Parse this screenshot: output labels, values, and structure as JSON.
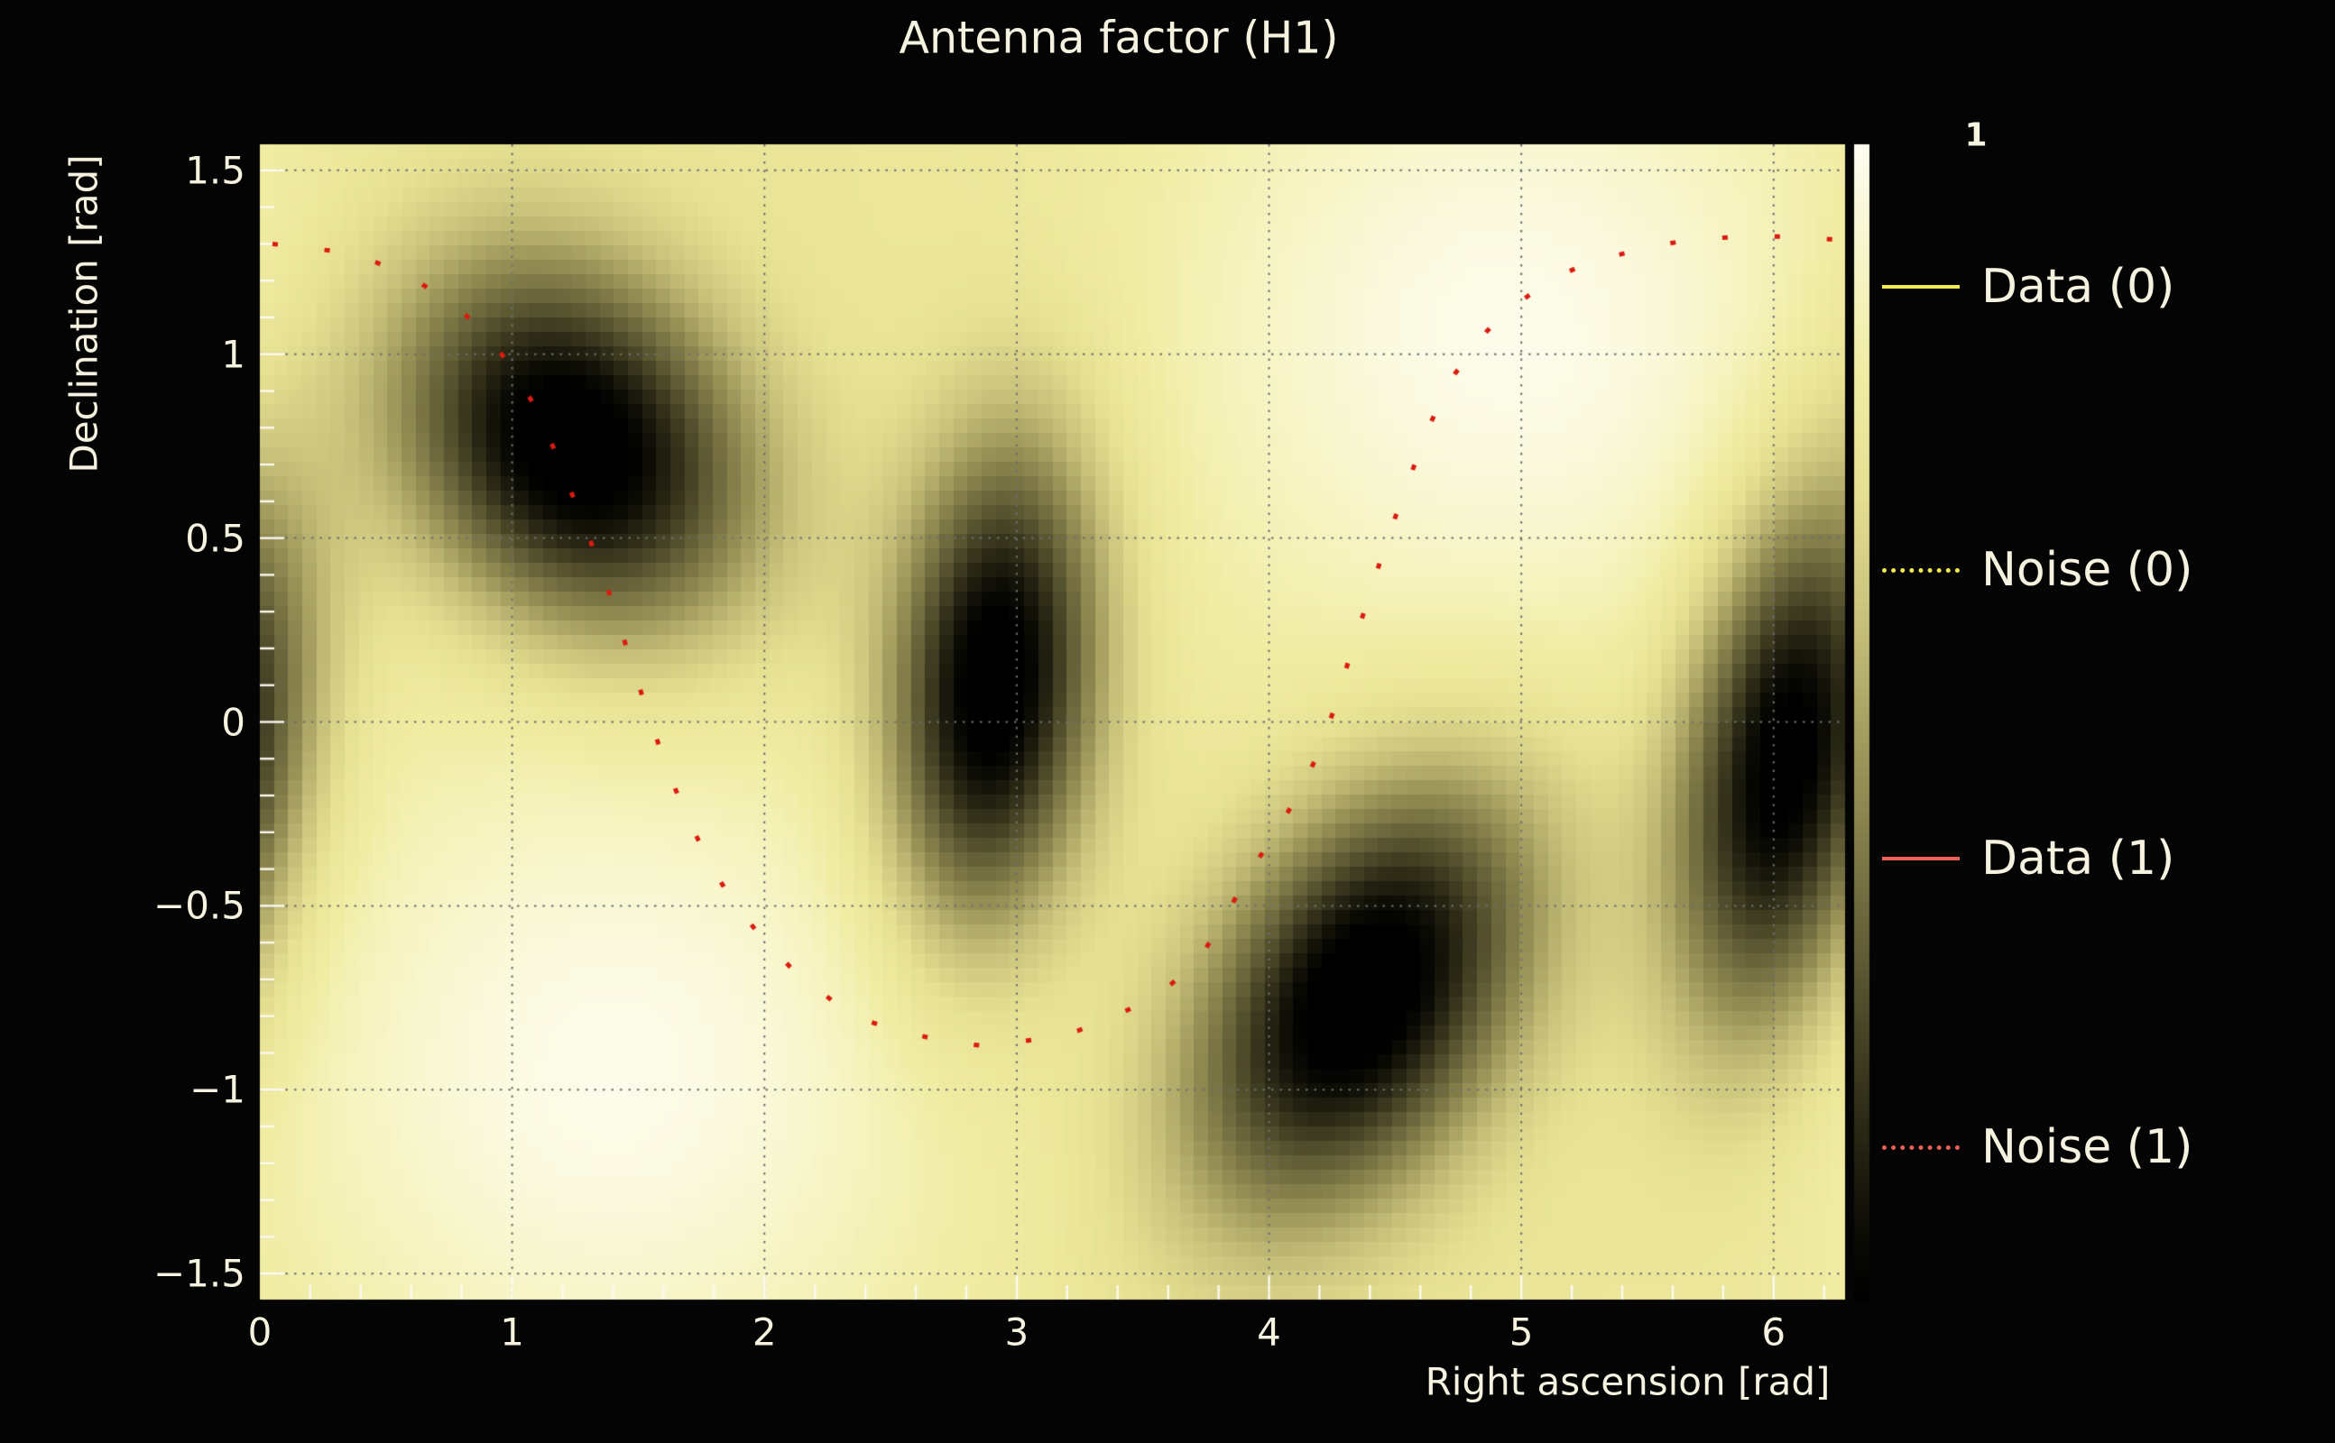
{
  "figure": {
    "background": "#040404",
    "text_color": "#f5f2e0"
  },
  "chart_data": {
    "type": "heatmap",
    "title": "Antenna factor (H1)",
    "xlabel": "Right ascension [rad]",
    "ylabel": "Declination [rad]",
    "x_range": [
      0,
      6.2832
    ],
    "y_range": [
      -1.5708,
      1.5708
    ],
    "x_major_ticks": [
      0,
      1,
      2,
      3,
      4,
      5,
      6
    ],
    "x_tick_labels": [
      "0",
      "1",
      "2",
      "3",
      "4",
      "5",
      "6"
    ],
    "y_major_ticks": [
      1.5,
      1.0,
      0.5,
      0.0,
      -0.5,
      -1.0,
      -1.5
    ],
    "y_tick_labels": [
      "1.5",
      "1",
      "0.5",
      "0",
      "−0.5",
      "−1",
      "−1.5"
    ],
    "x_minor_tick_step": 0.2,
    "y_minor_tick_step": 0.1,
    "grid": true,
    "grid_style": "dotted",
    "grid_color": "#6e6e72",
    "tick_color": "#fcfaf0",
    "colorbar": {
      "max_label": "1",
      "min_value": 0,
      "max_value": 1
    },
    "colormap_stops": [
      [
        0.0,
        "#000000"
      ],
      [
        0.06,
        "#0d0d06"
      ],
      [
        0.16,
        "#2e2c17"
      ],
      [
        0.3,
        "#615d36"
      ],
      [
        0.45,
        "#968f55"
      ],
      [
        0.58,
        "#c6bf79"
      ],
      [
        0.7,
        "#e6e092"
      ],
      [
        0.8,
        "#f0eca2"
      ],
      [
        0.9,
        "#f7f5c8"
      ],
      [
        1.0,
        "#fefdf2"
      ]
    ],
    "heatmap_model": {
      "comment": "antenna power pattern: base + bright maxima - null wells, periodic in RA",
      "base": 0.74,
      "grid_cells": [
        112,
        80
      ],
      "ra_periodic": true,
      "bright_spots": [
        {
          "ra": 4.95,
          "dec": 1.05,
          "amp": 0.24,
          "sigma_ra": 1.0,
          "sigma_dec": 0.7
        },
        {
          "ra": 1.4,
          "dec": -0.95,
          "amp": 0.24,
          "sigma_ra": 1.0,
          "sigma_dec": 0.7
        }
      ],
      "nulls": [
        {
          "ra": 1.24,
          "dec": 0.75,
          "amp": 0.85,
          "sigma_major": 0.5,
          "sigma_minor": 0.33,
          "angle_deg": -18
        },
        {
          "ra": 2.91,
          "dec": 0.1,
          "amp": 0.85,
          "sigma_major": 0.46,
          "sigma_minor": 0.28,
          "angle_deg": 80
        },
        {
          "ra": 4.37,
          "dec": -0.74,
          "amp": 0.85,
          "sigma_major": 0.52,
          "sigma_minor": 0.33,
          "angle_deg": 35
        },
        {
          "ra": 6.05,
          "dec": -0.1,
          "amp": 0.85,
          "sigma_major": 0.52,
          "sigma_minor": 0.28,
          "angle_deg": 75
        }
      ]
    },
    "noise_track": {
      "name": "Noise (1)",
      "color": "#dc1b10",
      "style": "dotted",
      "points": [
        [
          0.05,
          1.3
        ],
        [
          0.3,
          1.28
        ],
        [
          0.46,
          1.25
        ],
        [
          0.6,
          1.21
        ],
        [
          0.71,
          1.16
        ],
        [
          0.81,
          1.11
        ],
        [
          0.9,
          1.05
        ],
        [
          0.97,
          0.99
        ],
        [
          1.03,
          0.93
        ],
        [
          1.08,
          0.87
        ],
        [
          1.13,
          0.8
        ],
        [
          1.18,
          0.72
        ],
        [
          1.22,
          0.65
        ],
        [
          1.26,
          0.58
        ],
        [
          1.3,
          0.51
        ],
        [
          1.34,
          0.44
        ],
        [
          1.38,
          0.36
        ],
        [
          1.42,
          0.28
        ],
        [
          1.45,
          0.21
        ],
        [
          1.49,
          0.13
        ],
        [
          1.52,
          0.06
        ],
        [
          1.56,
          -0.02
        ],
        [
          1.6,
          -0.1
        ],
        [
          1.64,
          -0.17
        ],
        [
          1.68,
          -0.24
        ],
        [
          1.73,
          -0.31
        ],
        [
          1.78,
          -0.38
        ],
        [
          1.84,
          -0.45
        ],
        [
          1.9,
          -0.51
        ],
        [
          1.97,
          -0.57
        ],
        [
          2.04,
          -0.62
        ],
        [
          2.12,
          -0.68
        ],
        [
          2.2,
          -0.72
        ],
        [
          2.29,
          -0.77
        ],
        [
          2.39,
          -0.81
        ],
        [
          2.49,
          -0.83
        ],
        [
          2.6,
          -0.85
        ],
        [
          2.72,
          -0.87
        ],
        [
          2.86,
          -0.88
        ],
        [
          3.0,
          -0.87
        ],
        [
          3.12,
          -0.86
        ],
        [
          3.24,
          -0.84
        ],
        [
          3.36,
          -0.81
        ],
        [
          3.48,
          -0.77
        ],
        [
          3.6,
          -0.72
        ],
        [
          3.72,
          -0.65
        ],
        [
          3.85,
          -0.5
        ],
        [
          3.93,
          -0.4
        ],
        [
          4.03,
          -0.3
        ],
        [
          4.12,
          -0.19
        ],
        [
          4.2,
          -0.08
        ],
        [
          4.26,
          0.04
        ],
        [
          4.33,
          0.2
        ],
        [
          4.4,
          0.35
        ],
        [
          4.47,
          0.5
        ],
        [
          4.55,
          0.65
        ],
        [
          4.62,
          0.78
        ],
        [
          4.69,
          0.89
        ],
        [
          4.74,
          0.95
        ],
        [
          4.8,
          1.0
        ],
        [
          4.86,
          1.06
        ],
        [
          4.93,
          1.11
        ],
        [
          5.03,
          1.16
        ],
        [
          5.14,
          1.21
        ],
        [
          5.27,
          1.25
        ],
        [
          5.44,
          1.28
        ],
        [
          5.65,
          1.31
        ],
        [
          5.87,
          1.32
        ],
        [
          6.08,
          1.32
        ],
        [
          6.27,
          1.31
        ]
      ]
    },
    "legend": [
      {
        "label": "Data (0)",
        "color": "#f3ec4e",
        "style": "solid"
      },
      {
        "label": "Noise (0)",
        "color": "#f3ec4e",
        "style": "dotted"
      },
      {
        "label": "Data (1)",
        "color": "#ed6055",
        "style": "solid"
      },
      {
        "label": "Noise (1)",
        "color": "#ed6055",
        "style": "dotted"
      }
    ]
  }
}
